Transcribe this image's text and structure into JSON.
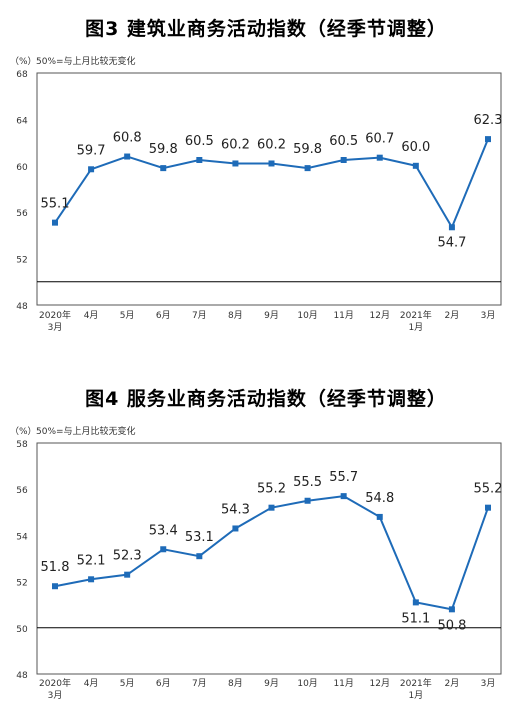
{
  "charts": [
    {
      "title": "图3  建筑业商务活动指数（经季节调整）",
      "unit": "（%）",
      "note": "50%=与上月比较无变化"
    },
    {
      "title": "图4  服务业商务活动指数（经季节调整）",
      "unit": "（%）",
      "note": "50%=与上月比较无变化"
    }
  ],
  "chart_data": [
    {
      "type": "line",
      "title": "图3  建筑业商务活动指数（经季节调整）",
      "ylabel": "（%）",
      "note": "50%=与上月比较无变化",
      "categories": [
        "2020年\n3月",
        "4月",
        "5月",
        "6月",
        "7月",
        "8月",
        "9月",
        "10月",
        "11月",
        "12月",
        "2021年\n1月",
        "2月",
        "3月"
      ],
      "values": [
        55.1,
        59.7,
        60.8,
        59.8,
        60.5,
        60.2,
        60.2,
        59.8,
        60.5,
        60.7,
        60.0,
        54.7,
        62.3
      ],
      "ylim": [
        48,
        68
      ],
      "yticks": [
        48,
        52,
        56,
        60,
        64,
        68
      ],
      "reference_line": 50,
      "color": "#1e6bb8",
      "grid": false
    },
    {
      "type": "line",
      "title": "图4  服务业商务活动指数（经季节调整）",
      "ylabel": "（%）",
      "note": "50%=与上月比较无变化",
      "categories": [
        "2020年\n3月",
        "4月",
        "5月",
        "6月",
        "7月",
        "8月",
        "9月",
        "10月",
        "11月",
        "12月",
        "2021年\n1月",
        "2月",
        "3月"
      ],
      "values": [
        51.8,
        52.1,
        52.3,
        53.4,
        53.1,
        54.3,
        55.2,
        55.5,
        55.7,
        54.8,
        51.1,
        50.8,
        55.2
      ],
      "ylim": [
        48,
        58
      ],
      "yticks": [
        48,
        50,
        52,
        54,
        56,
        58
      ],
      "reference_line": 50,
      "color": "#1e6bb8",
      "grid": false
    }
  ]
}
